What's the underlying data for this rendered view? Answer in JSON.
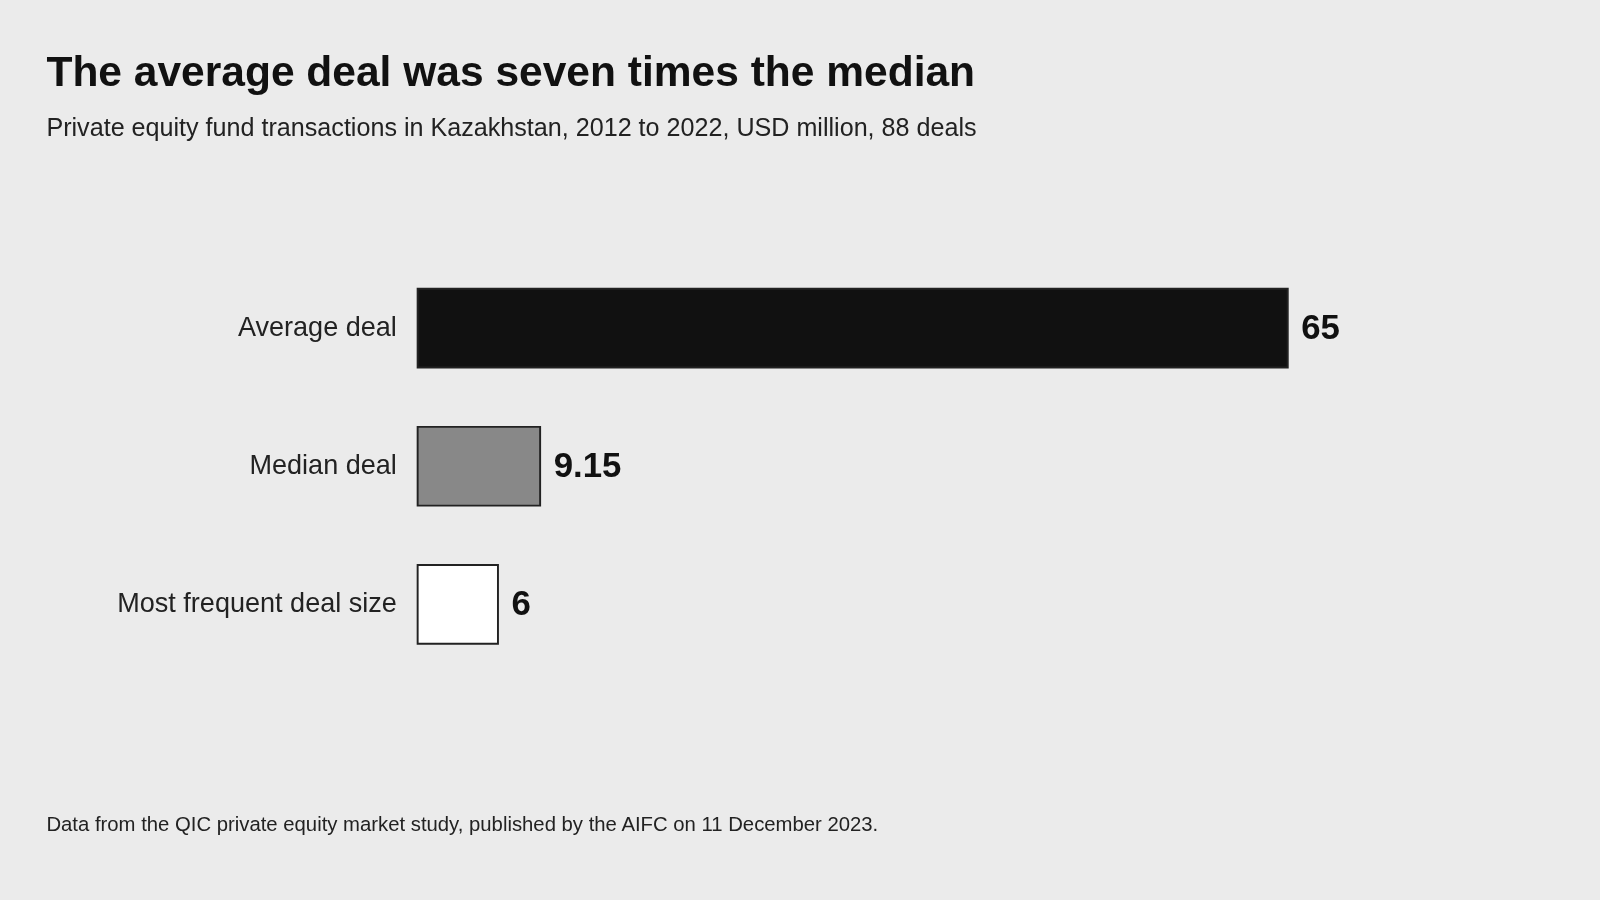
{
  "chart_data": {
    "type": "bar",
    "orientation": "horizontal",
    "title": "The average deal was seven times the median",
    "subtitle": "Private equity fund transactions in Kazakhstan, 2012 to 2022, USD million, 88 deals",
    "categories": [
      "Average deal",
      "Median deal",
      "Most frequent deal size"
    ],
    "values": [
      65,
      9.15,
      6
    ],
    "colors": [
      "#111111",
      "#888888",
      "#ffffff"
    ],
    "data_labels": true,
    "tick_labels": "y",
    "annotations": [
      "Data from the QIC private equity market study, published by the AIFC on 11 December 2023."
    ]
  }
}
